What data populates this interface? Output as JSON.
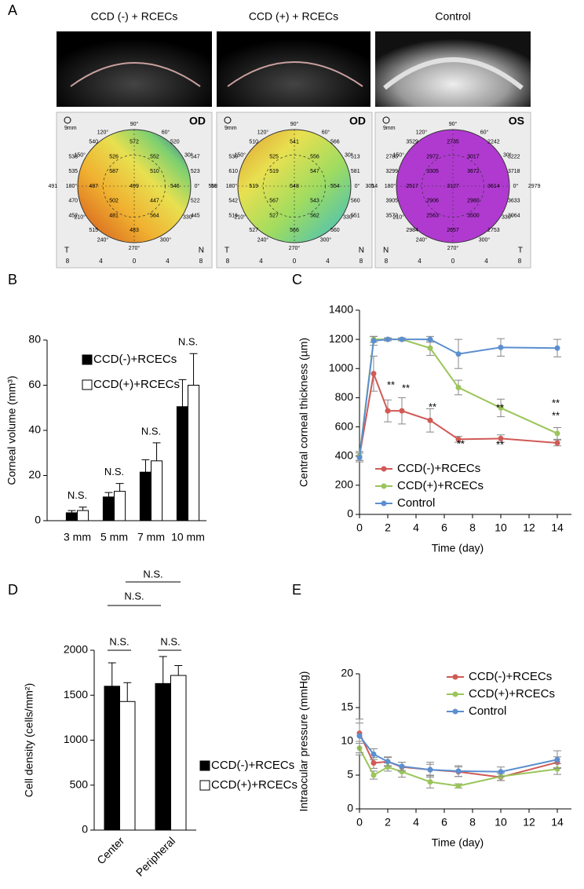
{
  "panel_a": {
    "label": "A",
    "columns": [
      "CCD (-) + RCECs",
      "CCD (+) + RCECs",
      "Control"
    ],
    "angles": [
      "90°",
      "60°",
      "30°",
      "0°",
      "330°",
      "300°",
      "270°",
      "240°",
      "210°",
      "180°",
      "150°",
      "120°"
    ],
    "scale_label": "9mm",
    "ruler": [
      8,
      4,
      0,
      4,
      8
    ],
    "maps": [
      {
        "eye": "OD",
        "left": "T",
        "right": "N",
        "values": [
          540,
          572,
          520,
          538,
          526,
          552,
          547,
          535,
          587,
          510,
          523,
          491,
          487,
          499,
          546,
          598,
          470,
          502,
          447,
          522,
          452,
          481,
          564,
          445,
          515,
          483
        ]
      },
      {
        "eye": "OD",
        "left": "T",
        "right": "N",
        "values": [
          510,
          541,
          566,
          530,
          525,
          556,
          513,
          610,
          519,
          547,
          581,
          568,
          519,
          548,
          554,
          521,
          542,
          567,
          543,
          560,
          516,
          527,
          562,
          551,
          527,
          566,
          560
        ]
      },
      {
        "eye": "OS",
        "left": "N",
        "right": "T",
        "values": [
          3529,
          2735,
          2242,
          2785,
          2972,
          3017,
          3222,
          3299,
          3305,
          3672,
          3718,
          3014,
          2517,
          3127,
          3614,
          2979,
          3905,
          2906,
          2980,
          3633,
          3572,
          2563,
          3500,
          3064,
          2984,
          2657,
          2753
        ]
      }
    ]
  },
  "chart_data": [
    {
      "type": "bar",
      "label": "B",
      "y_label": "Corneal volume (mm³)",
      "categories": [
        "3 mm",
        "5 mm",
        "7 mm",
        "10 mm"
      ],
      "series": [
        {
          "name": "CCD(-)+RCECs",
          "color": "#000000",
          "values": [
            3.5,
            10.5,
            21.5,
            50.5
          ],
          "errors": [
            1,
            2,
            5.5,
            12
          ]
        },
        {
          "name": "CCD(+)+RCECs",
          "color": "#ffffff",
          "values": [
            4.5,
            13,
            26.5,
            60
          ],
          "errors": [
            1.5,
            3.5,
            8,
            14
          ]
        }
      ],
      "annotations": [
        "N.S.",
        "N.S.",
        "N.S.",
        "N.S."
      ],
      "ylim": [
        0,
        80
      ],
      "yticks": [
        0,
        20,
        40,
        60,
        80
      ]
    },
    {
      "type": "line",
      "label": "C",
      "x_label": "Time (day)",
      "y_label": "Central corneal thickness (µm)",
      "x": [
        0,
        1,
        2,
        3,
        5,
        7,
        10,
        14
      ],
      "series": [
        {
          "name": "CCD(-)+RCECs",
          "color": "#d05a55",
          "values": [
            400,
            965,
            710,
            710,
            645,
            515,
            520,
            490
          ],
          "errors": [
            30,
            120,
            75,
            90,
            80,
            20,
            25,
            20
          ]
        },
        {
          "name": "CCD(+)+RCECs",
          "color": "#9bc55a",
          "values": [
            400,
            1200,
            1200,
            1200,
            1140,
            870,
            730,
            555
          ],
          "errors": [
            30,
            20,
            10,
            10,
            50,
            50,
            60,
            40
          ]
        },
        {
          "name": "Control",
          "color": "#5b8fcf",
          "values": [
            390,
            1190,
            1200,
            1200,
            1200,
            1100,
            1145,
            1140
          ],
          "errors": [
            30,
            30,
            10,
            10,
            20,
            100,
            60,
            60
          ]
        }
      ],
      "annotations": [
        "**",
        "**",
        "**",
        "**",
        "**",
        "**",
        "**",
        "**"
      ],
      "xlim": [
        0,
        15
      ],
      "xticks": [
        0,
        2,
        4,
        6,
        8,
        10,
        12,
        14
      ],
      "ylim": [
        0,
        1400
      ],
      "yticks": [
        0,
        200,
        400,
        600,
        800,
        1000,
        1200,
        1400
      ]
    },
    {
      "type": "bar",
      "label": "D",
      "y_label": "Cell density  (cells/mm²)",
      "categories": [
        "Center",
        "Peripheral"
      ],
      "series": [
        {
          "name": "CCD(-)+RCECs",
          "color": "#000000",
          "values": [
            1600,
            1630
          ],
          "errors": [
            260,
            300
          ]
        },
        {
          "name": "CCD(+)+RCECs",
          "color": "#ffffff",
          "values": [
            1430,
            1720
          ],
          "errors": [
            210,
            110
          ]
        }
      ],
      "annotations": [
        "N.S.",
        "N.S.",
        "N.S.",
        "N.S."
      ],
      "ylim": [
        0,
        2000
      ],
      "yticks": [
        0,
        500,
        1000,
        1500,
        2000
      ]
    },
    {
      "type": "line",
      "label": "E",
      "x_label": "Time (day)",
      "y_label": "Intraocular pressure (mmHg)",
      "x": [
        0,
        1,
        2,
        3,
        5,
        7,
        10,
        14
      ],
      "series": [
        {
          "name": "CCD(-)+RCECs",
          "color": "#d05a55",
          "values": [
            11.2,
            6.8,
            7.0,
            6.2,
            5.8,
            5.5,
            4.7,
            6.9
          ],
          "errors": [
            1.5,
            0.8,
            0.7,
            0.7,
            0.8,
            0.7,
            0.5,
            0.8
          ]
        },
        {
          "name": "CCD(+)+RCECs",
          "color": "#9bc55a",
          "values": [
            9,
            5,
            6.2,
            5.5,
            4,
            3.4,
            4.8,
            5.9
          ],
          "errors": [
            1,
            0.6,
            0.6,
            0.8,
            0.9,
            0.3,
            0.6,
            0.8
          ]
        },
        {
          "name": "Control",
          "color": "#5b8fcf",
          "values": [
            10.8,
            8.1,
            7,
            6.3,
            5.8,
            5.6,
            5.5,
            7.3
          ],
          "errors": [
            2.5,
            0.8,
            0.6,
            0.6,
            1.1,
            0.8,
            0.7,
            1.3
          ]
        }
      ],
      "xlim": [
        0,
        15
      ],
      "xticks": [
        0,
        2,
        4,
        6,
        8,
        10,
        12,
        14
      ],
      "ylim": [
        0,
        20
      ],
      "yticks": [
        0,
        5,
        10,
        15,
        20
      ]
    }
  ]
}
